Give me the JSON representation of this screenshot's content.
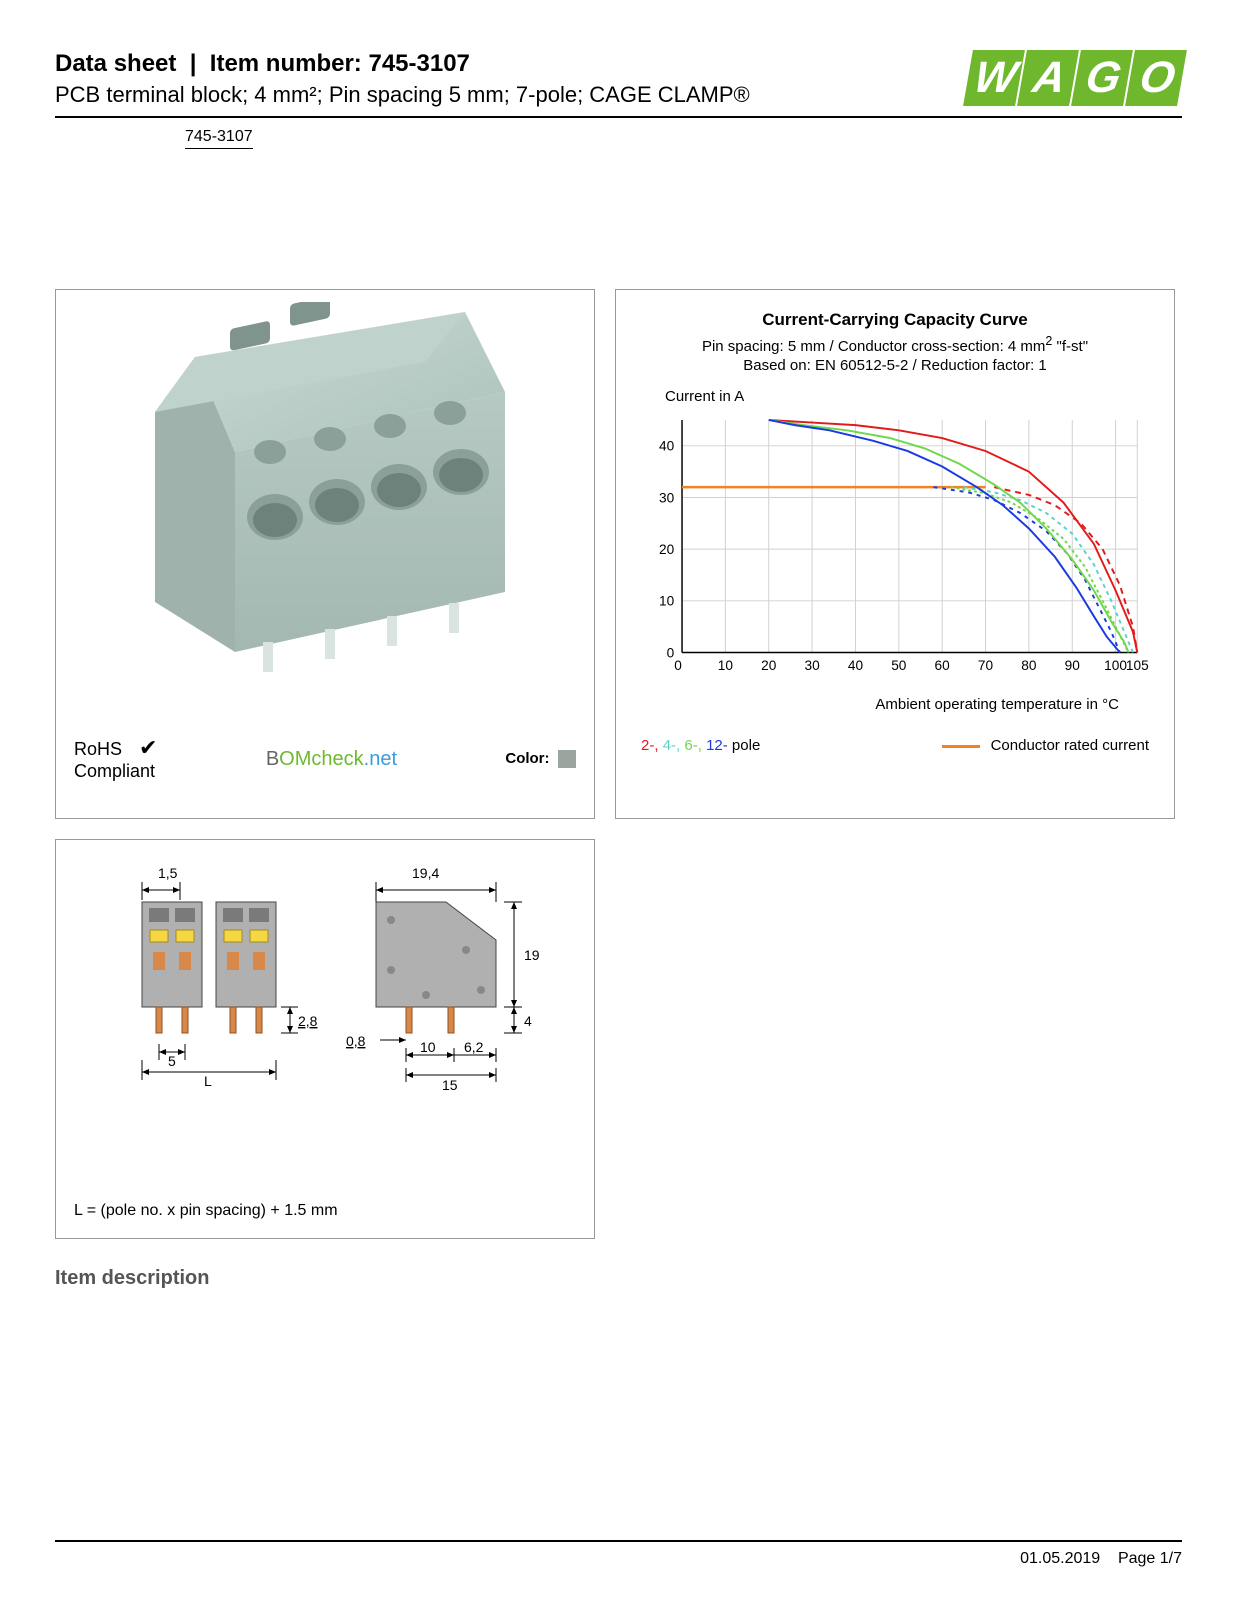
{
  "header": {
    "sheet_label": "Data sheet",
    "item_label": "Item number:",
    "item_number": "745-3107",
    "subtitle": "PCB terminal block; 4 mm²; Pin spacing 5 mm; 7-pole; CAGE CLAMP®",
    "link_text": "745-3107"
  },
  "logo": {
    "letters": [
      "W",
      "A",
      "G",
      "O"
    ],
    "brand_color": "#6fb82e"
  },
  "product_panel": {
    "block_color": "#b6cac3",
    "block_shadow": "#9fb3ac",
    "rohs_line1": "RoHS",
    "rohs_line2": "Compliant",
    "bomcheck_b": "B",
    "bomcheck_om": "OM",
    "bomcheck_check": "check",
    "bomcheck_net": ".net",
    "color_label": "Color:",
    "swatch_color": "#9aa5a0"
  },
  "chart": {
    "title": "Current-Carrying Capacity Curve",
    "sub1_prefix": "Pin spacing: 5 mm / Conductor cross-section: 4 mm",
    "sub1_sup": "2",
    "sub1_suffix": " \"f-st\"",
    "sub2": "Based on: EN 60512-5-2 / Reduction factor: 1",
    "ylabel": "Current in A",
    "xlabel": "Ambient operating temperature in °C",
    "y_ticks": [
      0,
      10,
      20,
      30,
      40
    ],
    "x_ticks": [
      0,
      10,
      20,
      30,
      40,
      50,
      60,
      70,
      80,
      90,
      100,
      105
    ],
    "xlim": [
      0,
      105
    ],
    "ylim": [
      0,
      45
    ],
    "grid_color": "#d0d0d0",
    "axis_color": "#000000",
    "bg_color": "#ffffff",
    "series": {
      "rated": {
        "color": "#f58220",
        "width": 2.5,
        "dash": "none",
        "data": [
          [
            0,
            32
          ],
          [
            70,
            32
          ]
        ]
      },
      "pole2": {
        "color": "#e21a1a",
        "width": 2,
        "dash": "6,5",
        "derate": [
          [
            72,
            32
          ],
          [
            80,
            30.5
          ],
          [
            86,
            28.5
          ],
          [
            92,
            25
          ],
          [
            97,
            20
          ],
          [
            101,
            13
          ],
          [
            104,
            5
          ],
          [
            105,
            0
          ]
        ],
        "solid": [
          [
            20,
            45
          ],
          [
            30,
            44.5
          ],
          [
            40,
            44
          ],
          [
            50,
            43
          ],
          [
            60,
            41.5
          ],
          [
            70,
            39
          ],
          [
            80,
            35
          ],
          [
            88,
            29
          ],
          [
            95,
            21
          ],
          [
            100,
            12
          ],
          [
            104,
            4
          ],
          [
            105,
            0
          ]
        ]
      },
      "pole4": {
        "color": "#5dd1c9",
        "width": 2,
        "dash": "4,4",
        "derate": [
          [
            65,
            32
          ],
          [
            72,
            31
          ],
          [
            78,
            29.5
          ],
          [
            84,
            27
          ],
          [
            90,
            23
          ],
          [
            95,
            17
          ],
          [
            99,
            10
          ],
          [
            102,
            4
          ],
          [
            104,
            0
          ]
        ]
      },
      "pole6": {
        "color": "#6fd84a",
        "width": 2,
        "dash": "3,3",
        "derate": [
          [
            62,
            32
          ],
          [
            70,
            30.8
          ],
          [
            76,
            29
          ],
          [
            82,
            26
          ],
          [
            88,
            22
          ],
          [
            93,
            16.5
          ],
          [
            97,
            10
          ],
          [
            100,
            5
          ],
          [
            103,
            0
          ]
        ],
        "solid": [
          [
            20,
            45
          ],
          [
            28,
            44
          ],
          [
            38,
            43
          ],
          [
            48,
            41.5
          ],
          [
            56,
            39.5
          ],
          [
            64,
            36.5
          ],
          [
            72,
            32.5
          ],
          [
            78,
            29
          ],
          [
            84,
            24
          ],
          [
            90,
            18
          ],
          [
            95,
            12
          ],
          [
            99,
            6
          ],
          [
            102,
            2
          ],
          [
            103,
            0
          ]
        ]
      },
      "pole12": {
        "color": "#1a3ae2",
        "width": 2,
        "dash": "4,5",
        "derate": [
          [
            58,
            32
          ],
          [
            66,
            31
          ],
          [
            72,
            29.5
          ],
          [
            78,
            27
          ],
          [
            84,
            23.5
          ],
          [
            89,
            19
          ],
          [
            93,
            14
          ],
          [
            96,
            9
          ],
          [
            99,
            4
          ],
          [
            101,
            0
          ]
        ],
        "solid": [
          [
            20,
            45
          ],
          [
            26,
            44
          ],
          [
            34,
            43
          ],
          [
            44,
            41
          ],
          [
            52,
            39
          ],
          [
            60,
            36
          ],
          [
            68,
            32
          ],
          [
            74,
            28.5
          ],
          [
            80,
            24
          ],
          [
            86,
            18.5
          ],
          [
            91,
            12.5
          ],
          [
            95,
            7
          ],
          [
            98,
            3
          ],
          [
            101,
            0
          ]
        ]
      }
    },
    "legend": {
      "p2": "2-,",
      "p4": "4-,",
      "p6": "6-,",
      "p12": "12-",
      "pole_word": " pole",
      "rated": "Conductor rated current"
    }
  },
  "dims": {
    "d_1_5": "1,5",
    "d_5": "5",
    "d_L": "L",
    "d_2_8": "2,8",
    "d_19_4": "19,4",
    "d_19": "19",
    "d_4": "4",
    "d_0_8": "0,8",
    "d_10": "10",
    "d_6_2": "6,2",
    "d_15": "15",
    "note": "L = (pole no. x pin spacing) + 1.5 mm",
    "body_color": "#b0b0b0",
    "highlight_yellow": "#f5d742",
    "pin_color": "#d8894a"
  },
  "section": {
    "item_desc": "Item description"
  },
  "footer": {
    "date": "01.05.2019",
    "page": "Page 1/7"
  }
}
